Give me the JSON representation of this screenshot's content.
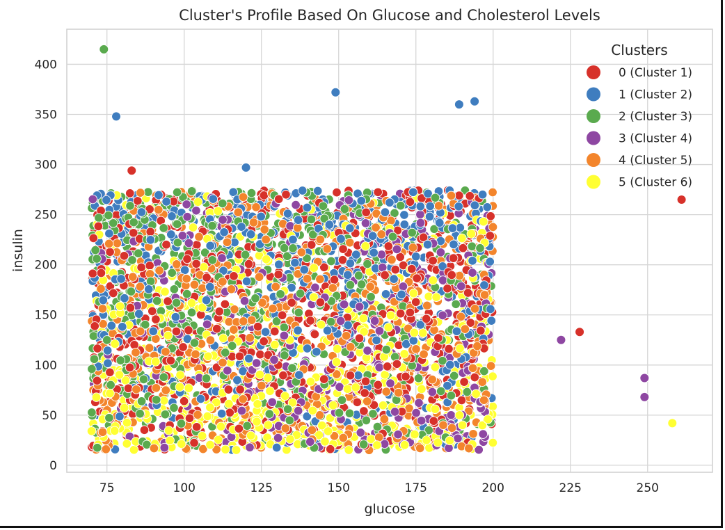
{
  "chart_data": {
    "type": "scatter",
    "title": "Cluster's Profile Based On Glucose and Cholesterol Levels",
    "xlabel": "glucose",
    "ylabel": "insulin",
    "xlim": [
      62,
      271
    ],
    "ylim": [
      -7,
      435
    ],
    "xticks": [
      75,
      100,
      125,
      150,
      175,
      200,
      225,
      250
    ],
    "yticks": [
      0,
      50,
      100,
      150,
      200,
      250,
      300,
      350,
      400
    ],
    "grid": true,
    "legend": {
      "title": "Clusters",
      "placement": "top-right",
      "entries": [
        "0 (Cluster 1)",
        "1 (Cluster 2)",
        "2 (Cluster 3)",
        "3 (Cluster 4)",
        "4 (Cluster 5)",
        "5 (Cluster 6)"
      ]
    },
    "colors": [
      "#d7312a",
      "#3f7dbf",
      "#5aaa4e",
      "#8e47a2",
      "#f3852c",
      "#ffff33"
    ],
    "dense_region": {
      "x_range": [
        70,
        200
      ],
      "y_range": [
        15,
        275
      ],
      "cluster_pattern": "all clusters densely overlapping"
    },
    "series": [
      {
        "name": "0 (Cluster 1)",
        "x": [
          83,
          228,
          261
        ],
        "y": [
          294,
          133,
          265
        ]
      },
      {
        "name": "1 (Cluster 2)",
        "x": [
          78,
          120,
          149,
          189,
          194
        ],
        "y": [
          348,
          297,
          372,
          360,
          363
        ]
      },
      {
        "name": "2 (Cluster 3)",
        "x": [
          74
        ],
        "y": [
          415
        ]
      },
      {
        "name": "3 (Cluster 4)",
        "x": [
          222,
          249,
          249
        ],
        "y": [
          125,
          87,
          68
        ]
      },
      {
        "name": "4 (Cluster 5)",
        "x": [],
        "y": []
      },
      {
        "name": "5 (Cluster 6)",
        "x": [
          258
        ],
        "y": [
          42
        ]
      }
    ]
  }
}
